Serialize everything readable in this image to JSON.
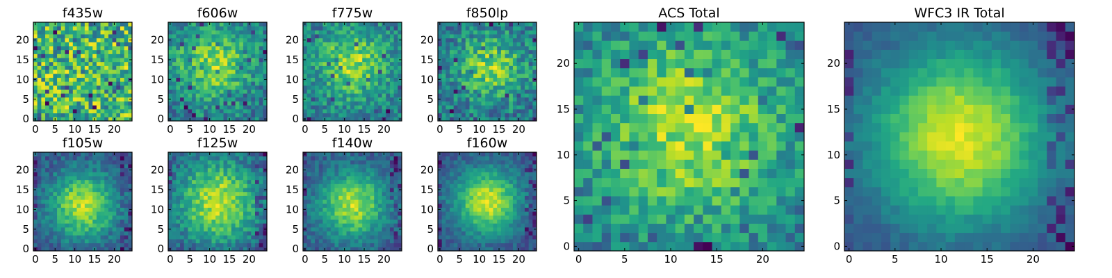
{
  "chart_data": [
    {
      "type": "heatmap",
      "title": "f435w",
      "xticks": [
        "0",
        "5",
        "10",
        "15",
        "20"
      ],
      "yticks": [
        "0",
        "5",
        "10",
        "15",
        "20"
      ],
      "xlim": [
        -0.5,
        24.5
      ],
      "ylim": [
        -0.5,
        24.5
      ],
      "grid": false,
      "colormap": "viridis",
      "pattern": "noisy",
      "seed": 11,
      "center": [
        12,
        12
      ],
      "sigma": 14,
      "noise": 0.55
    },
    {
      "type": "heatmap",
      "title": "f606w",
      "xticks": [
        "0",
        "5",
        "10",
        "15",
        "20"
      ],
      "yticks": [
        "0",
        "5",
        "10",
        "15",
        "20"
      ],
      "xlim": [
        -0.5,
        24.5
      ],
      "ylim": [
        -0.5,
        24.5
      ],
      "grid": false,
      "colormap": "viridis",
      "pattern": "noisy-source",
      "seed": 23,
      "center": [
        11,
        14
      ],
      "sigma": 7,
      "noise": 0.45
    },
    {
      "type": "heatmap",
      "title": "f775w",
      "xticks": [
        "0",
        "5",
        "10",
        "15",
        "20"
      ],
      "yticks": [
        "0",
        "5",
        "10",
        "15",
        "20"
      ],
      "xlim": [
        -0.5,
        24.5
      ],
      "ylim": [
        -0.5,
        24.5
      ],
      "grid": false,
      "colormap": "viridis",
      "pattern": "noisy-source",
      "seed": 37,
      "center": [
        12,
        14
      ],
      "sigma": 6,
      "noise": 0.45
    },
    {
      "type": "heatmap",
      "title": "f850lp",
      "xticks": [
        "0",
        "5",
        "10",
        "15",
        "20"
      ],
      "yticks": [
        "0",
        "5",
        "10",
        "15",
        "20"
      ],
      "xlim": [
        -0.5,
        24.5
      ],
      "ylim": [
        -0.5,
        24.5
      ],
      "grid": false,
      "colormap": "viridis",
      "pattern": "noisy-source",
      "seed": 41,
      "center": [
        13,
        13
      ],
      "sigma": 6,
      "noise": 0.5
    },
    {
      "type": "heatmap",
      "title": "f105w",
      "xticks": [
        "0",
        "5",
        "10",
        "15",
        "20"
      ],
      "yticks": [
        "0",
        "5",
        "10",
        "15",
        "20"
      ],
      "xlim": [
        -0.5,
        24.5
      ],
      "ylim": [
        -0.5,
        24.5
      ],
      "grid": false,
      "colormap": "viridis",
      "pattern": "source",
      "seed": 53,
      "center": [
        12,
        11
      ],
      "sigma": 6,
      "noise": 0.2
    },
    {
      "type": "heatmap",
      "title": "f125w",
      "xticks": [
        "0",
        "5",
        "10",
        "15",
        "20"
      ],
      "yticks": [
        "0",
        "5",
        "10",
        "15",
        "20"
      ],
      "xlim": [
        -0.5,
        24.5
      ],
      "ylim": [
        -0.5,
        24.5
      ],
      "grid": false,
      "colormap": "viridis",
      "pattern": "source",
      "seed": 67,
      "center": [
        12,
        12
      ],
      "sigma": 8,
      "noise": 0.22
    },
    {
      "type": "heatmap",
      "title": "f140w",
      "xticks": [
        "0",
        "5",
        "10",
        "15",
        "20"
      ],
      "yticks": [
        "0",
        "5",
        "10",
        "15",
        "20"
      ],
      "xlim": [
        -0.5,
        24.5
      ],
      "ylim": [
        -0.5,
        24.5
      ],
      "grid": false,
      "colormap": "viridis",
      "pattern": "source",
      "seed": 79,
      "center": [
        12,
        11
      ],
      "sigma": 6,
      "noise": 0.2
    },
    {
      "type": "heatmap",
      "title": "f160w",
      "xticks": [
        "0",
        "5",
        "10",
        "15",
        "20"
      ],
      "yticks": [
        "0",
        "5",
        "10",
        "15",
        "20"
      ],
      "xlim": [
        -0.5,
        24.5
      ],
      "ylim": [
        -0.5,
        24.5
      ],
      "grid": false,
      "colormap": "viridis",
      "pattern": "source",
      "seed": 83,
      "center": [
        12,
        12
      ],
      "sigma": 6,
      "noise": 0.15
    },
    {
      "type": "heatmap",
      "title": "ACS Total",
      "xticks": [
        "0",
        "5",
        "10",
        "15",
        "20"
      ],
      "yticks": [
        "0",
        "5",
        "10",
        "15",
        "20"
      ],
      "xlim": [
        -0.5,
        24.5
      ],
      "ylim": [
        -0.5,
        24.5
      ],
      "grid": false,
      "colormap": "viridis",
      "pattern": "noisy-source",
      "seed": 97,
      "center": [
        12,
        13
      ],
      "sigma": 8,
      "noise": 0.35
    },
    {
      "type": "heatmap",
      "title": "WFC3 IR Total",
      "xticks": [
        "0",
        "5",
        "10",
        "15",
        "20"
      ],
      "yticks": [
        "0",
        "5",
        "10",
        "15",
        "20"
      ],
      "xlim": [
        -0.5,
        24.5
      ],
      "ylim": [
        -0.5,
        24.5
      ],
      "grid": false,
      "colormap": "viridis",
      "pattern": "smooth-source",
      "seed": 101,
      "center": [
        12,
        12
      ],
      "sigma": 7,
      "noise": 0.08
    }
  ]
}
